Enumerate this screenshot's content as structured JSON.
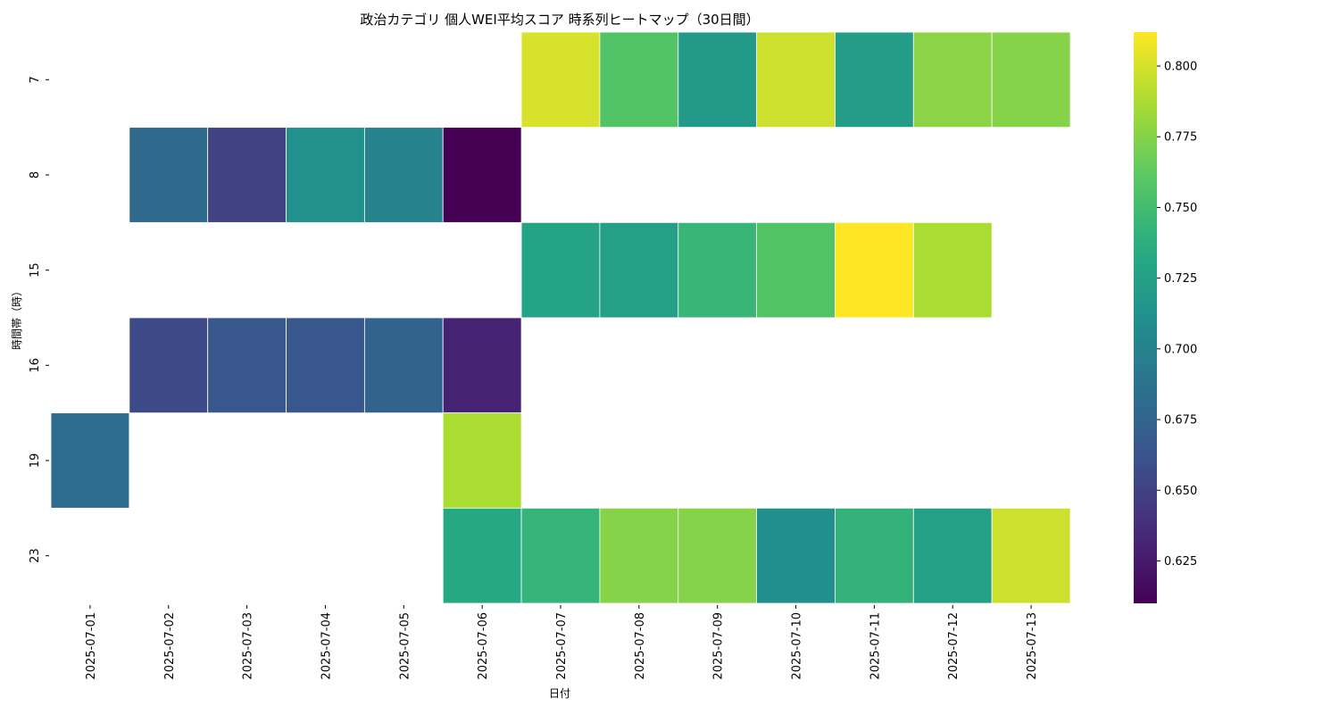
{
  "chart_data": {
    "type": "heatmap",
    "title": "政治カテゴリ 個人WEI平均スコア 時系列ヒートマップ（30日間）",
    "xlabel": "日付",
    "ylabel": "時間帯（時）",
    "x_categories": [
      "2025-07-01",
      "2025-07-02",
      "2025-07-03",
      "2025-07-04",
      "2025-07-05",
      "2025-07-06",
      "2025-07-07",
      "2025-07-08",
      "2025-07-09",
      "2025-07-10",
      "2025-07-11",
      "2025-07-12",
      "2025-07-13"
    ],
    "y_categories": [
      "7",
      "8",
      "15",
      "16",
      "19",
      "23"
    ],
    "values": [
      [
        null,
        null,
        null,
        null,
        null,
        null,
        0.8,
        0.757,
        0.72,
        0.797,
        0.722,
        0.777,
        0.775
      ],
      [
        null,
        0.68,
        0.65,
        0.712,
        0.7,
        0.61,
        null,
        null,
        null,
        null,
        null,
        null,
        null
      ],
      [
        null,
        null,
        null,
        null,
        null,
        null,
        0.728,
        0.725,
        0.745,
        0.757,
        0.812,
        0.787,
        null
      ],
      [
        null,
        0.655,
        0.665,
        0.665,
        0.675,
        0.63,
        null,
        null,
        null,
        null,
        null,
        null,
        null
      ],
      [
        0.682,
        null,
        null,
        null,
        null,
        0.787,
        null,
        null,
        null,
        null,
        null,
        null,
        null
      ],
      [
        null,
        null,
        null,
        null,
        null,
        0.733,
        0.743,
        0.775,
        0.775,
        0.71,
        0.742,
        0.725,
        0.797
      ]
    ],
    "colormap": "viridis",
    "vmin": 0.61,
    "vmax": 0.812,
    "colorbar_ticks": [
      0.625,
      0.65,
      0.675,
      0.7,
      0.725,
      0.75,
      0.775,
      0.8
    ],
    "colorbar_tick_labels": [
      "0.625",
      "0.650",
      "0.675",
      "0.700",
      "0.725",
      "0.750",
      "0.775",
      "0.800"
    ],
    "cell_edge_color": "#ffffff",
    "grid": false
  }
}
